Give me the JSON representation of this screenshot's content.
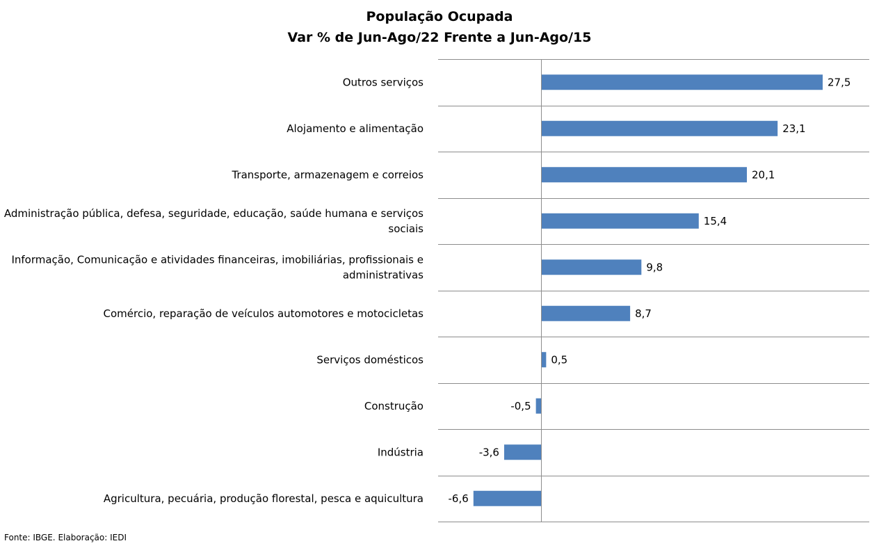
{
  "chart_data": {
    "type": "bar",
    "orientation": "horizontal",
    "title": "População Ocupada",
    "subtitle": "Var % de Jun-Ago/22 Frente a Jun-Ago/15",
    "categories": [
      [
        "Outros serviços"
      ],
      [
        "Alojamento e alimentação"
      ],
      [
        "Transporte, armazenagem e correios"
      ],
      [
        "Administração pública, defesa, seguridade, educação, saúde humana e serviços",
        "sociais"
      ],
      [
        "Informação, Comunicação e atividades financeiras, imobiliárias, profissionais e",
        "administrativas"
      ],
      [
        "Comércio, reparação de veículos automotores e motocicletas"
      ],
      [
        "Serviços domésticos"
      ],
      [
        "Construção"
      ],
      [
        "Indústria"
      ],
      [
        "Agricultura, pecuária, produção florestal, pesca e aquicultura"
      ]
    ],
    "values": [
      27.5,
      23.1,
      20.1,
      15.4,
      9.8,
      8.7,
      0.5,
      -0.5,
      -3.6,
      -6.6
    ],
    "value_labels": [
      "27,5",
      "23,1",
      "20,1",
      "15,4",
      "9,8",
      "8,7",
      "0,5",
      "-0,5",
      "-3,6",
      "-6,6"
    ],
    "xlim": [
      -10,
      32
    ],
    "bar_color": "#4f81bd",
    "grid": "horizontal separators between categories"
  },
  "source": "Fonte: IBGE. Elaboração: IEDI"
}
